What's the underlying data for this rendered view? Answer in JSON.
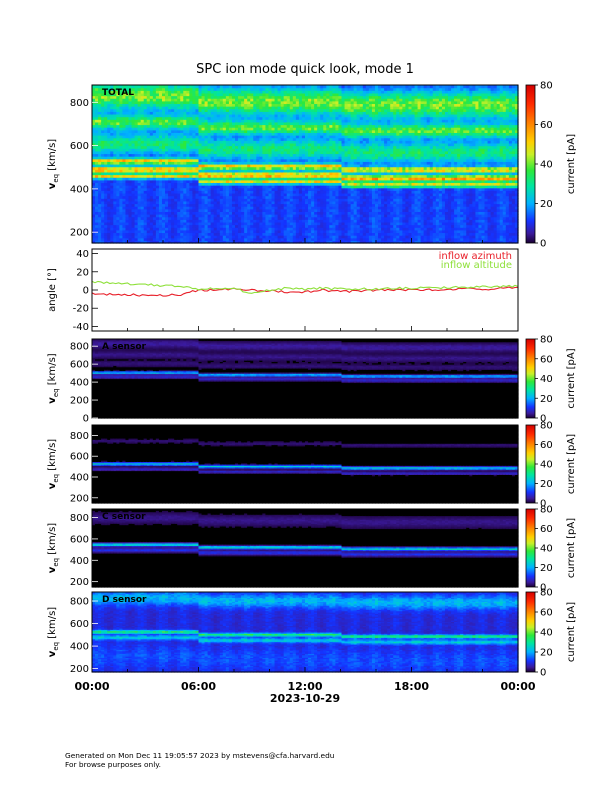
{
  "chart_data": {
    "type": "heatmap",
    "title": "SPC ion mode quick look, mode 1",
    "xlabel": "2023-10-29",
    "x_ticks": [
      "00:00",
      "06:00",
      "12:00",
      "18:00",
      "00:00"
    ],
    "x_range_hours": [
      0,
      24
    ],
    "panels": [
      {
        "kind": "spectrogram",
        "label": "TOTAL",
        "ylabel": "v_eq [km/s]",
        "ylabel_main": "v",
        "ylabel_sub": "eq",
        "ylabel_unit": "[km/s]",
        "ylim": [
          150,
          880
        ],
        "yticks": [
          200,
          400,
          600,
          800
        ],
        "colorbar": {
          "label": "current [pA]",
          "range": [
            0,
            80
          ],
          "ticks": [
            0,
            20,
            40,
            60,
            80
          ]
        },
        "background_level": 12,
        "bands": [
          {
            "v_center": 700,
            "width": 60,
            "level": 26
          },
          {
            "v_center": 820,
            "width": 120,
            "level": 28
          },
          {
            "v_center": 520,
            "width": 26,
            "level": 40
          },
          {
            "v_center": 480,
            "width": 30,
            "level": 44
          },
          {
            "v_center": 450,
            "width": 20,
            "level": 36
          },
          {
            "v_center": 600,
            "width": 90,
            "level": 20
          }
        ]
      },
      {
        "kind": "line",
        "ylabel": "angle [°]",
        "ylim": [
          -45,
          45
        ],
        "yticks": [
          -40,
          -20,
          0,
          20,
          40
        ],
        "series": [
          {
            "name": "inflow azimuth",
            "color": "#e8202a",
            "x": [
              0,
              1,
              2,
              3,
              4,
              5,
              6,
              7,
              8,
              9,
              10,
              11,
              12,
              13,
              14,
              15,
              16,
              17,
              18,
              19,
              20,
              21,
              22,
              23,
              24
            ],
            "y": [
              -4,
              -5,
              -5,
              -6,
              -6,
              -5,
              0,
              0,
              1,
              0,
              -1,
              -2,
              -2,
              0,
              -2,
              -1,
              0,
              0,
              0,
              0,
              1,
              1,
              1,
              2,
              3
            ]
          },
          {
            "name": "inflow altitude",
            "color": "#8ee03a",
            "x": [
              0,
              1,
              2,
              3,
              4,
              5,
              6,
              7,
              8,
              9,
              10,
              11,
              12,
              13,
              14,
              15,
              16,
              17,
              18,
              19,
              20,
              21,
              22,
              23,
              24
            ],
            "y": [
              9,
              8,
              7,
              6,
              5,
              4,
              1,
              2,
              2,
              -4,
              0,
              2,
              1,
              2,
              1,
              1,
              1,
              2,
              2,
              2,
              3,
              3,
              4,
              4,
              4
            ]
          }
        ]
      },
      {
        "kind": "spectrogram",
        "label": "A sensor",
        "ylabel": "v_eq [km/s]",
        "ylabel_main": "v",
        "ylabel_sub": "eq",
        "ylabel_unit": "[km/s]",
        "ylim": [
          0,
          880
        ],
        "yticks": [
          0,
          200,
          400,
          600,
          800
        ],
        "colorbar": {
          "label": "current [pA]",
          "range": [
            0,
            80
          ],
          "ticks": [
            0,
            20,
            40,
            60,
            80
          ]
        },
        "background_level": 0,
        "bands": [
          {
            "v_center": 820,
            "width": 100,
            "level": 5
          },
          {
            "v_center": 700,
            "width": 80,
            "level": 4
          },
          {
            "v_center": 600,
            "width": 70,
            "level": 3
          },
          {
            "v_center": 500,
            "width": 30,
            "level": 22
          },
          {
            "v_center": 455,
            "width": 40,
            "level": 8
          }
        ]
      },
      {
        "kind": "spectrogram",
        "label": "",
        "ylabel": "v_eq [km/s]",
        "ylabel_main": "v",
        "ylabel_sub": "eq",
        "ylabel_unit": "[km/s]",
        "ylim": [
          150,
          900
        ],
        "yticks": [
          200,
          400,
          600,
          800
        ],
        "colorbar": {
          "label": "current [pA]",
          "range": [
            0,
            80
          ],
          "ticks": [
            0,
            20,
            40,
            60,
            80
          ]
        },
        "background_level": 0,
        "bands": [
          {
            "v_center": 740,
            "width": 40,
            "level": 3
          },
          {
            "v_center": 520,
            "width": 30,
            "level": 24
          },
          {
            "v_center": 470,
            "width": 30,
            "level": 8
          }
        ]
      },
      {
        "kind": "spectrogram",
        "label": "C sensor",
        "ylabel": "v_eq [km/s]",
        "ylabel_main": "v",
        "ylabel_sub": "eq",
        "ylabel_unit": "[km/s]",
        "ylim": [
          150,
          880
        ],
        "yticks": [
          200,
          400,
          600,
          800
        ],
        "colorbar": {
          "label": "current [pA]",
          "range": [
            0,
            80
          ],
          "ticks": [
            0,
            20,
            40,
            60,
            80
          ]
        },
        "background_level": 0,
        "bands": [
          {
            "v_center": 790,
            "width": 110,
            "level": 4
          },
          {
            "v_center": 540,
            "width": 30,
            "level": 26
          },
          {
            "v_center": 490,
            "width": 40,
            "level": 10
          }
        ]
      },
      {
        "kind": "spectrogram",
        "label": "D sensor",
        "ylabel": "v_eq [km/s]",
        "ylabel_main": "v",
        "ylabel_sub": "eq",
        "ylabel_unit": "[km/s]",
        "ylim": [
          170,
          880
        ],
        "yticks": [
          200,
          400,
          600,
          800
        ],
        "colorbar": {
          "label": "current [pA]",
          "range": [
            0,
            80
          ],
          "ticks": [
            0,
            20,
            40,
            60,
            80
          ]
        },
        "background_level": 9,
        "bands": [
          {
            "v_center": 820,
            "width": 120,
            "level": 12
          },
          {
            "v_center": 520,
            "width": 30,
            "level": 24
          },
          {
            "v_center": 470,
            "width": 40,
            "level": 14
          },
          {
            "v_center": 300,
            "width": 200,
            "level": 4
          }
        ]
      }
    ]
  },
  "footer": {
    "line1": "Generated on Mon Dec 11 19:05:57 2023 by mstevens@cfa.harvard.edu",
    "line2": "For browse purposes only."
  }
}
